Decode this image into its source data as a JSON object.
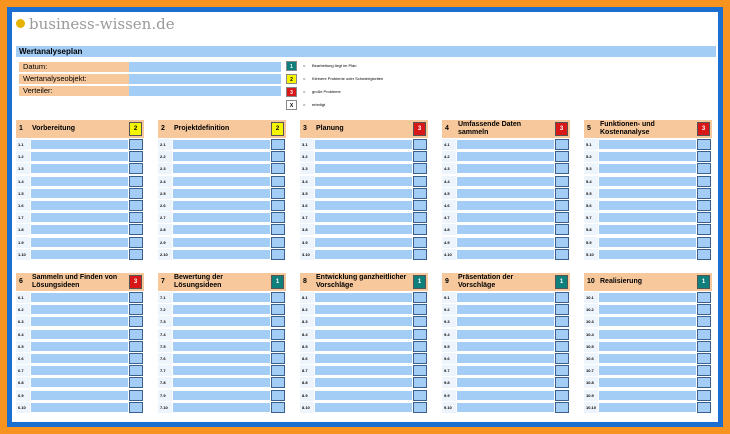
{
  "logo": "business-wissen.de",
  "title": "Wertanalyseplan",
  "fields": [
    "Datum:",
    "Wertanalyseobjekt:",
    "Verteiler:"
  ],
  "legend": [
    {
      "status": "1",
      "sep": "=",
      "text": "Bearbeitung liegt im Plan",
      "color": "#0e7f7a"
    },
    {
      "status": "2",
      "sep": "=",
      "text": "Kleinere Probleme oder Schwierigkeiten",
      "color": "#f5f500"
    },
    {
      "status": "3",
      "sep": "=",
      "text": "große Probleme",
      "color": "#d81818"
    },
    {
      "status": "X",
      "sep": "=",
      "text": "erledigt",
      "color": "#ffffff"
    }
  ],
  "blocks": [
    {
      "number": "1",
      "title": "Vorbereitung",
      "status": "2",
      "rows": [
        "1.1",
        "1.2",
        "1.3",
        "1.4",
        "1.5",
        "1.6",
        "1.7",
        "1.8",
        "1.9",
        "1.10"
      ]
    },
    {
      "number": "2",
      "title": "Projektdefinition",
      "status": "2",
      "rows": [
        "2.1",
        "2.2",
        "2.3",
        "2.4",
        "2.5",
        "2.6",
        "2.7",
        "2.8",
        "2.9",
        "2.10"
      ]
    },
    {
      "number": "3",
      "title": "Planung",
      "status": "3",
      "rows": [
        "3.1",
        "3.2",
        "3.3",
        "3.4",
        "3.5",
        "3.6",
        "3.7",
        "3.8",
        "3.9",
        "3.10"
      ]
    },
    {
      "number": "4",
      "title": "Umfassende Daten sammeln",
      "status": "3",
      "rows": [
        "4.1",
        "4.2",
        "4.3",
        "4.4",
        "4.5",
        "4.6",
        "4.7",
        "4.8",
        "4.9",
        "4.10"
      ]
    },
    {
      "number": "5",
      "title": "Funktionen- und Kostenanalyse",
      "status": "3",
      "rows": [
        "5.1",
        "5.2",
        "5.3",
        "5.4",
        "5.5",
        "5.6",
        "5.7",
        "5.8",
        "5.9",
        "5.10"
      ]
    },
    {
      "number": "6",
      "title": "Sammeln und Finden von Lösungsideen",
      "status": "3",
      "rows": [
        "6.1",
        "6.2",
        "6.3",
        "6.4",
        "6.5",
        "6.6",
        "6.7",
        "6.8",
        "6.9",
        "6.10"
      ]
    },
    {
      "number": "7",
      "title": "Bewertung der Lösungsideen",
      "status": "1",
      "rows": [
        "7.1",
        "7.2",
        "7.3",
        "7.4",
        "7.5",
        "7.6",
        "7.7",
        "7.8",
        "7.9",
        "7.10"
      ]
    },
    {
      "number": "8",
      "title": "Entwicklung ganzheitlicher Vorschläge",
      "status": "1",
      "rows": [
        "8.1",
        "8.2",
        "8.3",
        "8.4",
        "8.5",
        "8.6",
        "8.7",
        "8.8",
        "8.9",
        "8.10"
      ]
    },
    {
      "number": "9",
      "title": "Präsentation der Vorschläge",
      "status": "1",
      "rows": [
        "9.1",
        "9.2",
        "9.3",
        "9.4",
        "9.5",
        "9.6",
        "9.7",
        "9.8",
        "9.9",
        "9.10"
      ]
    },
    {
      "number": "10",
      "title": "Realisierung",
      "status": "1",
      "rows": [
        "10.1",
        "10.2",
        "10.3",
        "10.4",
        "10.5",
        "10.6",
        "10.7",
        "10.8",
        "10.9",
        "10.10"
      ]
    }
  ]
}
